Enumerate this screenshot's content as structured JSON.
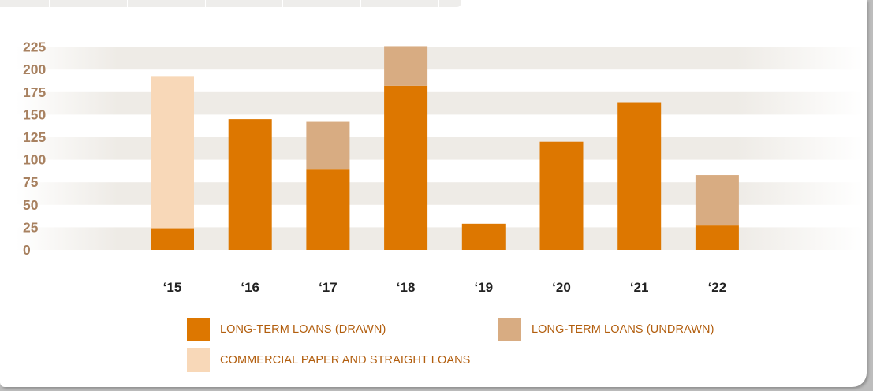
{
  "chart_data": {
    "type": "bar",
    "stacked": true,
    "categories": [
      "‘15",
      "‘16",
      "‘17",
      "‘18",
      "‘19",
      "‘20",
      "‘21",
      "‘22"
    ],
    "series": [
      {
        "name": "LONG-TERM LOANS (DRAWN)",
        "color": "#dd7700",
        "values": [
          24,
          145,
          89,
          182,
          29,
          120,
          163,
          27
        ]
      },
      {
        "name": "LONG-TERM LOANS (UNDRAWN)",
        "color": "#d8ac82",
        "values": [
          0,
          0,
          53,
          44,
          0,
          0,
          0,
          56
        ]
      },
      {
        "name": "COMMERCIAL PAPER AND STRAIGHT LOANS",
        "color": "#f8d8b8",
        "values": [
          168,
          0,
          0,
          0,
          0,
          0,
          0,
          0
        ]
      }
    ],
    "y_ticks": [
      "0",
      "25",
      "50",
      "75",
      "100",
      "125",
      "150",
      "175",
      "200",
      "225"
    ],
    "ylim": [
      0,
      225
    ],
    "grid": "alternating bands",
    "legend_position": "bottom"
  }
}
